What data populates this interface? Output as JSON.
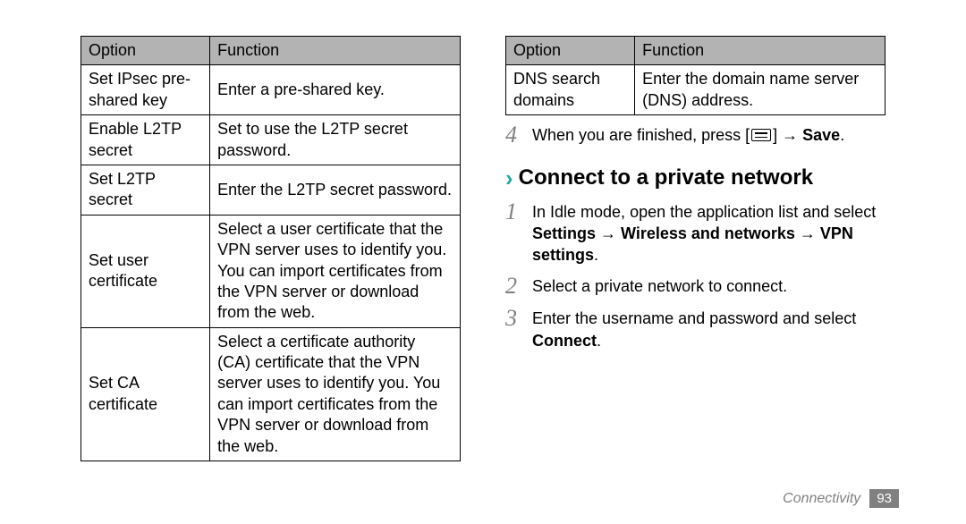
{
  "tables": {
    "left": {
      "headers": {
        "option": "Option",
        "function": "Function"
      },
      "rows": [
        {
          "option": "Set IPsec pre-shared key",
          "function": "Enter a pre-shared key."
        },
        {
          "option": "Enable L2TP secret",
          "function": "Set to use the L2TP secret password."
        },
        {
          "option": "Set L2TP secret",
          "function": "Enter the L2TP secret password."
        },
        {
          "option": "Set user certificate",
          "function": "Select a user certificate that the VPN server uses to identify you. You can import certificates from the VPN server or download from the web."
        },
        {
          "option": "Set CA certificate",
          "function": "Select a certificate authority (CA) certificate that the VPN server uses to identify you. You can import certificates from the VPN server or download from the web."
        }
      ]
    },
    "right": {
      "headers": {
        "option": "Option",
        "function": "Function"
      },
      "rows": [
        {
          "option": "DNS search domains",
          "function": "Enter the domain name server (DNS) address."
        }
      ]
    }
  },
  "step4": {
    "num": "4",
    "pre": "When you are finished, press [",
    "post": "] → ",
    "save": "Save",
    "end": "."
  },
  "section": {
    "chevron": "›",
    "title": "Connect to a private network"
  },
  "steps": [
    {
      "num": "1",
      "plain": "In Idle mode, open the application list and select ",
      "bold": "Settings → Wireless and networks → VPN settings",
      "end": "."
    },
    {
      "num": "2",
      "plain": "Select a private network to connect.",
      "bold": "",
      "end": ""
    },
    {
      "num": "3",
      "plain": "Enter the username and password and select ",
      "bold": "Connect",
      "end": "."
    }
  ],
  "footer": {
    "section": "Connectivity",
    "page": "93"
  }
}
